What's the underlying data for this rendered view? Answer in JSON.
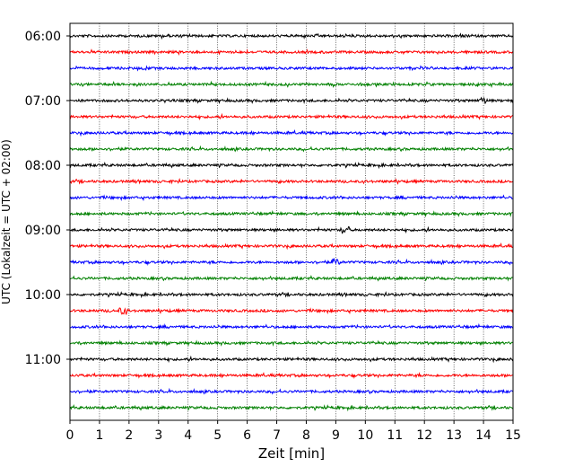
{
  "chart_data": {
    "type": "line",
    "title": "",
    "xlabel": "Zeit  [min]",
    "ylabel": "UTC (Lokalzeit = UTC + 02:00)",
    "xlim": [
      0,
      15
    ],
    "x_ticks": [
      "0",
      "1",
      "2",
      "3",
      "4",
      "5",
      "6",
      "7",
      "8",
      "9",
      "10",
      "11",
      "12",
      "13",
      "14",
      "15"
    ],
    "y_ticks": [
      "06:00",
      "07:00",
      "08:00",
      "09:00",
      "10:00",
      "11:00"
    ],
    "trace_interval_minutes": 15,
    "start_time": "06:00",
    "trace_colors": [
      "#000000",
      "#ff0000",
      "#0000ff",
      "#008000"
    ],
    "grid": {
      "vertical_dotted": true
    },
    "series": [
      {
        "start": "06:00"
      },
      {
        "start": "06:15"
      },
      {
        "start": "06:30"
      },
      {
        "start": "06:45"
      },
      {
        "start": "07:00"
      },
      {
        "start": "07:15"
      },
      {
        "start": "07:30"
      },
      {
        "start": "07:45"
      },
      {
        "start": "08:00"
      },
      {
        "start": "08:15"
      },
      {
        "start": "08:30"
      },
      {
        "start": "08:45"
      },
      {
        "start": "09:00"
      },
      {
        "start": "09:15"
      },
      {
        "start": "09:30"
      },
      {
        "start": "09:45"
      },
      {
        "start": "10:00"
      },
      {
        "start": "10:15"
      },
      {
        "start": "10:30"
      },
      {
        "start": "10:45"
      },
      {
        "start": "11:00"
      },
      {
        "start": "11:15"
      },
      {
        "start": "11:30"
      },
      {
        "start": "11:45"
      }
    ]
  }
}
